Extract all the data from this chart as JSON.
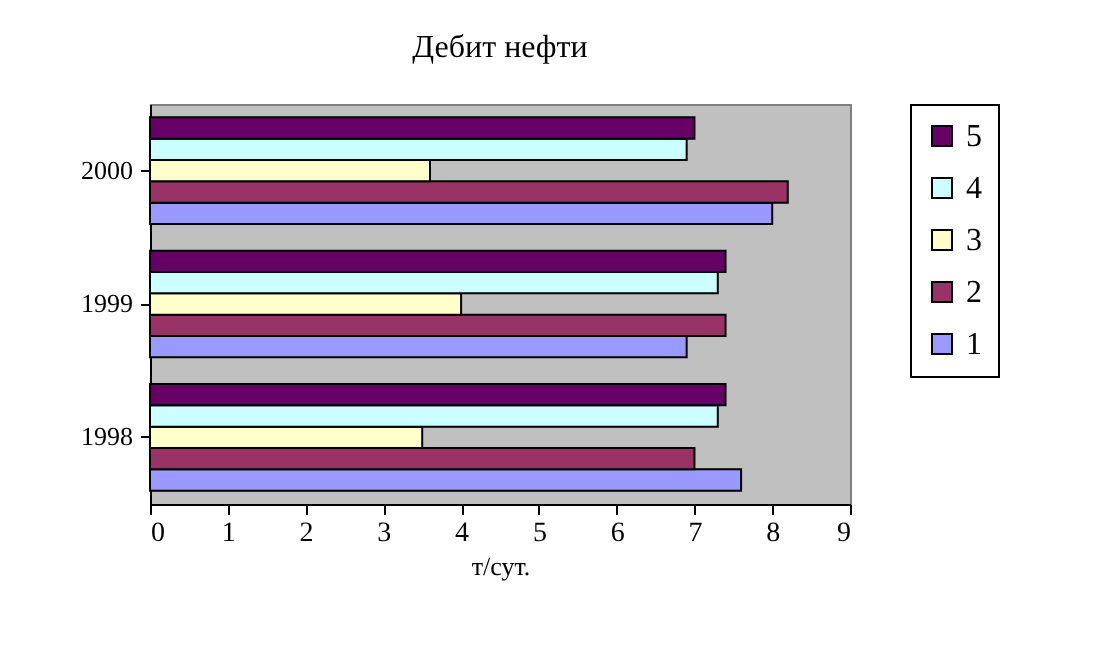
{
  "chart_data": {
    "type": "bar",
    "orientation": "horizontal",
    "title": "Дебит нефти",
    "xlabel": "т/сут.",
    "categories": [
      "2000",
      "1999",
      "1998"
    ],
    "series": [
      {
        "name": "1",
        "color": "#9999ff",
        "values": [
          8.0,
          6.9,
          7.6
        ]
      },
      {
        "name": "2",
        "color": "#993366",
        "values": [
          8.2,
          7.4,
          7.0
        ]
      },
      {
        "name": "3",
        "color": "#ffffcc",
        "values": [
          3.6,
          4.0,
          3.5
        ]
      },
      {
        "name": "4",
        "color": "#ccffff",
        "values": [
          6.9,
          7.3,
          7.3
        ]
      },
      {
        "name": "5",
        "color": "#660066",
        "values": [
          7.0,
          7.4,
          7.4
        ]
      }
    ],
    "xlim": [
      0,
      9
    ],
    "xticks": [
      0,
      1,
      2,
      3,
      4,
      5,
      6,
      7,
      8,
      9
    ],
    "grid": false,
    "legend": "right"
  }
}
